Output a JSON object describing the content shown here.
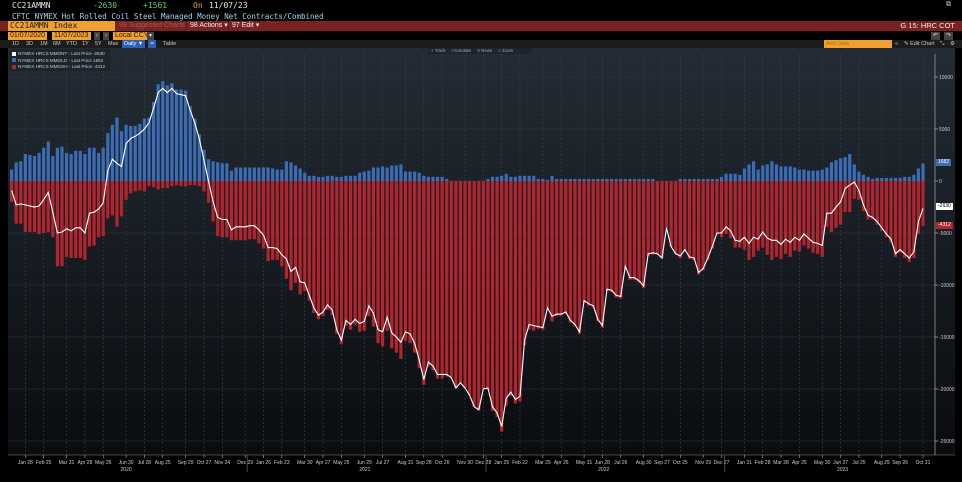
{
  "header": {
    "ticker": "CC21AMMN",
    "last": "-2630",
    "change": "+1561",
    "on_label": "On",
    "date": "11/07/23",
    "description": "CFTC NYMEX Hot Rolled Coil Steel Managed Money Net Contracts/Combined"
  },
  "toolbar": {
    "security": "CC21AMMN Index",
    "suggested": "99 Suggested Charts",
    "actions": "98 Actions ▾",
    "edit": "97 Edit ▾",
    "page_title": "G 15: HRC COT",
    "start_date": "01/07/2020",
    "dash": "-",
    "end_date": "11/07/2023",
    "currency": "Local CCY",
    "ranges": [
      "1D",
      "3D",
      "1M",
      "6M",
      "YTD",
      "1Y",
      "5Y",
      "Max"
    ],
    "frequency": "Daily ▼",
    "table": "Table",
    "add_data": "Add Data",
    "collapse": "«",
    "edit_chart": "✎ Edit Chart",
    "undo": "↶",
    "redo": "↷",
    "chart_tools": [
      "+ Track",
      "∕ Annotate",
      "≡ News",
      "⌕ Zoom"
    ]
  },
  "colors": {
    "long": "#3b6cb4",
    "short": "#b3252e",
    "net": "#ffffff",
    "accent": "#f0a030",
    "menubar": "#7a2222"
  },
  "chart_data": {
    "type": "bar",
    "title": "CFTC NYMEX Hot Rolled Coil Steel Managed Money Net Contracts/Combined",
    "x_start": "2020-01-07",
    "x_frequency": "weekly",
    "ylim": [
      -27000,
      12000
    ],
    "yticks": [
      10000,
      5000,
      0,
      -5000,
      -10000,
      -15000,
      -20000,
      -25000
    ],
    "ytick_labels": [
      "10000",
      "5000",
      "0",
      "-5000",
      "-10000",
      "-15000",
      "-20000",
      "-25000"
    ],
    "legend_placement": "top-left",
    "grid": true,
    "xticks": [
      {
        "year": "2020",
        "labels": [
          "Jan 28",
          "Feb 25",
          "Mar 31",
          "Apr 28",
          "May 26",
          "Jun 30",
          "Jul 28",
          "Aug 25",
          "Sep 29",
          "Oct 27",
          "Nov 24",
          "Dec 29"
        ]
      },
      {
        "year": "2021",
        "labels": [
          "Jan 26",
          "Feb 23",
          "Mar 30",
          "Apr 27",
          "May 25",
          "Jun 29",
          "Jul 27",
          "Aug 31",
          "Sep 28",
          "Oct 26",
          "Nov 30",
          "Dec 28"
        ]
      },
      {
        "year": "2022",
        "labels": [
          "Jan 25",
          "Feb 22",
          "Mar 29",
          "Apr 26",
          "May 31",
          "Jun 28",
          "Jul 26",
          "Aug 30",
          "Sep 27",
          "Oct 25",
          "Nov 29",
          "Dec 27"
        ]
      },
      {
        "year": "2023",
        "labels": [
          "Jan 31",
          "Feb 28",
          "Mar 28",
          "Apr 25",
          "May 30",
          "Jun 27",
          "Jul 25",
          "Aug 29",
          "Sep 26",
          "Oct 31"
        ]
      }
    ],
    "series": [
      {
        "name": "NYMEX HRCS MMONT - Last Price -2630",
        "key": "net",
        "type": "line",
        "last": "-2630",
        "values": [
          -900,
          -2300,
          -2200,
          -2300,
          -2400,
          -2500,
          -2400,
          -1800,
          -1100,
          -3000,
          -5000,
          -4900,
          -4600,
          -4800,
          -4500,
          -4500,
          -5000,
          -3100,
          -3000,
          -2700,
          -2100,
          1000,
          2100,
          1700,
          1400,
          3600,
          4100,
          4300,
          4600,
          5000,
          5600,
          7000,
          8500,
          8900,
          8500,
          8900,
          8400,
          8300,
          8200,
          6800,
          5600,
          4000,
          2000,
          0,
          -2000,
          -3500,
          -3700,
          -3700,
          -4700,
          -4400,
          -4400,
          -4400,
          -4300,
          -4300,
          -4700,
          -5200,
          -6400,
          -6400,
          -6500,
          -7100,
          -7500,
          -8700,
          -8300,
          -9700,
          -9800,
          -11000,
          -12200,
          -12900,
          -12600,
          -11900,
          -12400,
          -14300,
          -15300,
          -13400,
          -13800,
          -13300,
          -13700,
          -13500,
          -12000,
          -12700,
          -14300,
          -14500,
          -13100,
          -14600,
          -15000,
          -15500,
          -14500,
          -14700,
          -15600,
          -17200,
          -19100,
          -17400,
          -17800,
          -18600,
          -18600,
          -18600,
          -18900,
          -19900,
          -19400,
          -19900,
          -20600,
          -21700,
          -22000,
          -20000,
          -19900,
          -21700,
          -22300,
          -23600,
          -20900,
          -20300,
          -21000,
          -20700,
          -15300,
          -13800,
          -13900,
          -14000,
          -14100,
          -12200,
          -13000,
          -12800,
          -12800,
          -12600,
          -13400,
          -13800,
          -14500,
          -11500,
          -11800,
          -12000,
          -13300,
          -13900,
          -10400,
          -10500,
          -11000,
          -11100,
          -8200,
          -9300,
          -9300,
          -9600,
          -10100,
          -7000,
          -6900,
          -7000,
          -7400,
          -4500,
          -6300,
          -7000,
          -7200,
          -6600,
          -7300,
          -7400,
          -8800,
          -8400,
          -7400,
          -6300,
          -5000,
          -5000,
          -4400,
          -4800,
          -5700,
          -5800,
          -5400,
          -6000,
          -5400,
          -5600,
          -4900,
          -5500,
          -5700,
          -5700,
          -6100,
          -5600,
          -5900,
          -5400,
          -5700,
          -5100,
          -5500,
          -5900,
          -6000,
          -6200,
          -3100,
          -3100,
          -2500,
          -2000,
          -700,
          -400,
          -100,
          -900,
          -2300,
          -3300,
          -3500,
          -3900,
          -4500,
          -5100,
          -5600,
          -7000,
          -6600,
          -7000,
          -7400,
          -6800,
          -3900,
          -2630
        ]
      },
      {
        "name": "NYMEX HRCS MMOLG - Last Price 1682",
        "key": "long",
        "type": "bar",
        "last": "1682",
        "values": [
          1100,
          1800,
          1900,
          2600,
          2500,
          2400,
          2700,
          3200,
          3800,
          2400,
          3200,
          3300,
          2700,
          2600,
          2900,
          2900,
          2600,
          3200,
          3200,
          2700,
          3200,
          4600,
          5400,
          6100,
          4800,
          5400,
          5300,
          5300,
          5500,
          6000,
          6100,
          7600,
          9300,
          9600,
          9200,
          9400,
          8800,
          8800,
          8700,
          7200,
          6000,
          4500,
          3000,
          2100,
          1900,
          1800,
          1700,
          1700,
          1000,
          1300,
          1300,
          1300,
          1300,
          1300,
          1300,
          1300,
          1300,
          1200,
          1100,
          1100,
          1900,
          1800,
          1500,
          1200,
          800,
          500,
          500,
          400,
          400,
          500,
          500,
          400,
          400,
          500,
          500,
          500,
          800,
          900,
          1000,
          1300,
          1300,
          1400,
          1300,
          1500,
          1500,
          1600,
          900,
          900,
          900,
          800,
          500,
          400,
          400,
          400,
          400,
          200,
          0,
          0,
          0,
          0,
          0,
          0,
          0,
          0,
          200,
          400,
          400,
          500,
          700,
          400,
          400,
          500,
          500,
          500,
          500,
          200,
          200,
          100,
          500,
          200,
          200,
          200,
          200,
          200,
          200,
          200,
          200,
          200,
          200,
          200,
          200,
          200,
          200,
          200,
          200,
          200,
          200,
          200,
          200,
          200,
          200,
          0,
          0,
          0,
          0,
          0,
          200,
          200,
          200,
          200,
          200,
          200,
          200,
          200,
          200,
          400,
          700,
          700,
          700,
          600,
          1200,
          1600,
          1900,
          1100,
          1500,
          1600,
          1900,
          1600,
          1400,
          1400,
          1400,
          1300,
          1100,
          1100,
          1000,
          1000,
          1000,
          1100,
          1300,
          1800,
          2000,
          2200,
          2300,
          2600,
          1600,
          900,
          600,
          400,
          200,
          300,
          300,
          300,
          300,
          300,
          300,
          400,
          400,
          600,
          1200,
          1682
        ]
      },
      {
        "name": "NYMEX HRCS MMOSH - Last Price -4312",
        "key": "short",
        "type": "bar",
        "last": "-4312",
        "values": [
          -2000,
          -4100,
          -4100,
          -4900,
          -4900,
          -4900,
          -5100,
          -5000,
          -4900,
          -5400,
          -8200,
          -8200,
          -7300,
          -7400,
          -7400,
          -7400,
          -7600,
          -6300,
          -6200,
          -5400,
          -5300,
          -3600,
          -3300,
          -4400,
          -3400,
          -1800,
          -1200,
          -1000,
          -900,
          -1000,
          -500,
          -600,
          -800,
          -700,
          -700,
          -500,
          -400,
          -500,
          -500,
          -400,
          -400,
          -500,
          -1000,
          -2100,
          -3900,
          -5300,
          -5400,
          -5400,
          -5700,
          -5700,
          -5700,
          -5700,
          -5600,
          -5600,
          -6000,
          -6500,
          -7700,
          -7600,
          -7600,
          -8200,
          -9400,
          -10500,
          -9800,
          -10900,
          -10600,
          -11500,
          -12700,
          -13300,
          -13000,
          -12400,
          -12900,
          -14700,
          -15700,
          -13900,
          -14300,
          -13800,
          -14500,
          -14400,
          -13000,
          -14000,
          -15600,
          -15900,
          -14400,
          -16100,
          -16500,
          -17100,
          -15400,
          -15600,
          -16500,
          -18000,
          -19600,
          -17800,
          -18200,
          -19000,
          -19000,
          -18800,
          -18900,
          -19900,
          -19400,
          -19900,
          -20600,
          -21700,
          -22000,
          -20000,
          -20100,
          -22100,
          -22700,
          -24100,
          -21600,
          -20700,
          -21400,
          -21200,
          -15800,
          -14300,
          -14400,
          -14200,
          -14300,
          -12300,
          -13500,
          -13000,
          -13000,
          -12800,
          -13600,
          -14000,
          -14700,
          -11700,
          -12000,
          -12200,
          -13500,
          -14100,
          -10600,
          -10700,
          -11200,
          -11300,
          -8400,
          -9500,
          -9500,
          -9800,
          -10300,
          -7200,
          -7100,
          -7000,
          -7400,
          -4500,
          -6300,
          -7000,
          -7400,
          -6800,
          -7500,
          -7600,
          -9000,
          -8600,
          -7600,
          -6500,
          -5200,
          -5400,
          -5100,
          -5500,
          -6400,
          -6400,
          -6600,
          -7600,
          -7300,
          -6700,
          -6400,
          -7100,
          -7600,
          -7300,
          -7500,
          -7000,
          -7300,
          -6700,
          -6800,
          -6200,
          -6500,
          -6900,
          -7000,
          -7300,
          -4400,
          -4900,
          -4500,
          -4200,
          -3000,
          -3000,
          -1700,
          -1800,
          -2900,
          -3700,
          -3700,
          -4200,
          -4800,
          -5400,
          -5900,
          -7300,
          -6900,
          -7400,
          -7800,
          -7400,
          -5100,
          -4312
        ]
      }
    ]
  }
}
